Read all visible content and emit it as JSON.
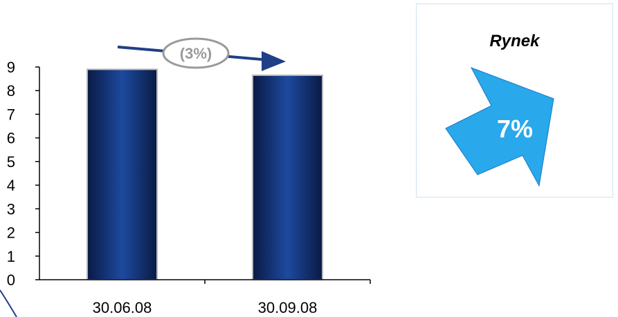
{
  "chart_data": {
    "type": "bar",
    "categories": [
      "30.06.08",
      "30.09.08"
    ],
    "values": [
      8.9,
      8.65
    ],
    "ylim": [
      0,
      9
    ],
    "yticks": [
      0,
      1,
      2,
      3,
      4,
      5,
      6,
      7,
      8,
      9
    ],
    "grid": false,
    "bar_color": "#0d2a6b",
    "change_label": "(3%)",
    "change_arrow_color": "#1f3f86",
    "change_label_color": "#9a9a9a"
  },
  "market_panel": {
    "title": "Rynek",
    "value": "7%",
    "arrow_color": "#29a8ec",
    "arrow_border_color": "#1a78c2"
  }
}
